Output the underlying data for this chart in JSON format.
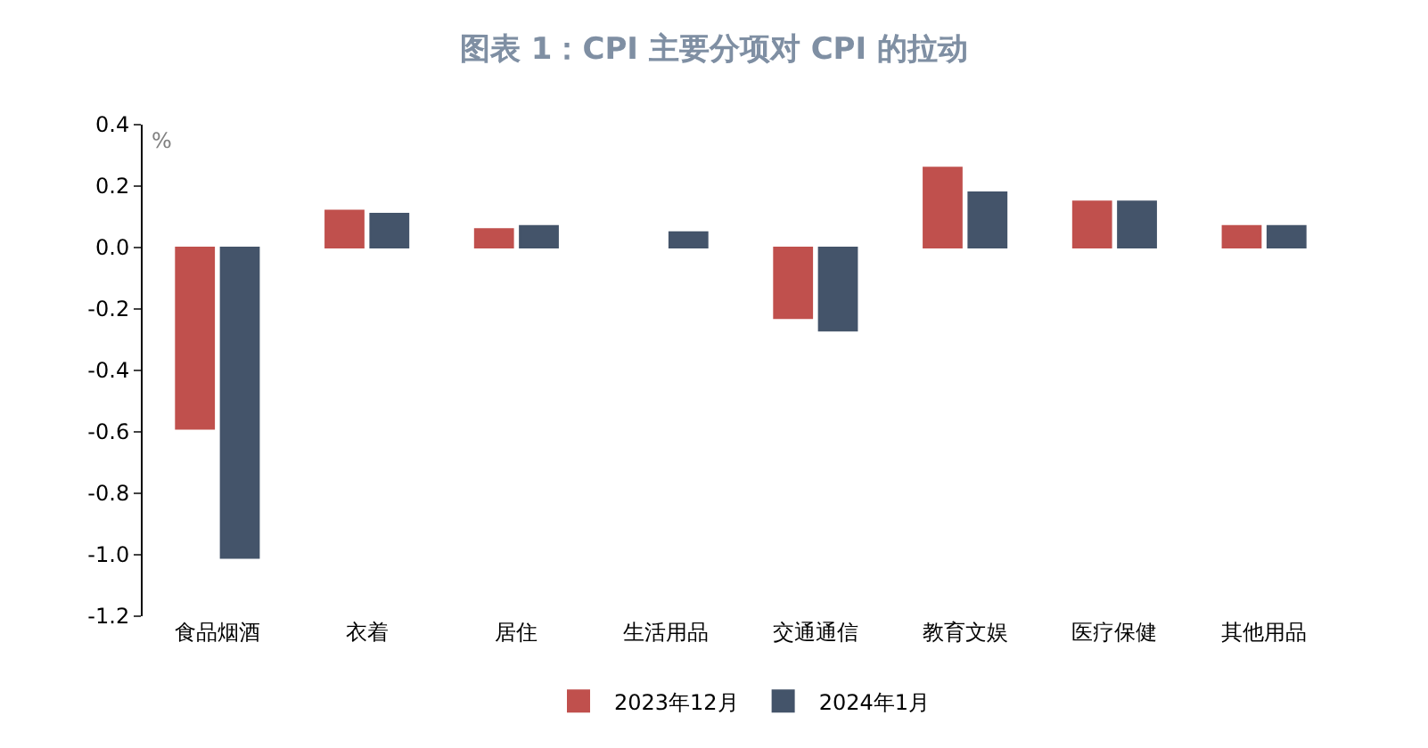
{
  "chart_data": {
    "type": "bar",
    "title": "图表 1：CPI 主要分项对 CPI 的拉动",
    "ylabel": "%",
    "categories": [
      "食品烟酒",
      "衣着",
      "居住",
      "生活用品",
      "交通通信",
      "教育文娱",
      "医疗保健",
      "其他用品"
    ],
    "series": [
      {
        "name": "2023年12月",
        "color": "#c0504d",
        "values": [
          -0.59,
          0.12,
          0.06,
          null,
          -0.23,
          0.26,
          0.15,
          0.07
        ]
      },
      {
        "name": "2024年1月",
        "color": "#44546a",
        "values": [
          -1.01,
          0.11,
          0.07,
          0.05,
          -0.27,
          0.18,
          0.15,
          0.07
        ]
      }
    ],
    "ylim": [
      -1.2,
      0.4
    ],
    "yticks": [
      {
        "value": -1.2,
        "label": "-1.2"
      },
      {
        "value": -1.0,
        "label": "-1.0"
      },
      {
        "value": -0.8,
        "label": "-0.8"
      },
      {
        "value": -0.6,
        "label": "-0.6"
      },
      {
        "value": -0.4,
        "label": "-0.4"
      },
      {
        "value": -0.2,
        "label": "-0.2"
      },
      {
        "value": 0.0,
        "label": "0.0"
      },
      {
        "value": 0.2,
        "label": "0.2"
      },
      {
        "value": 0.4,
        "label": "0.4"
      }
    ],
    "legend": "bottom"
  }
}
